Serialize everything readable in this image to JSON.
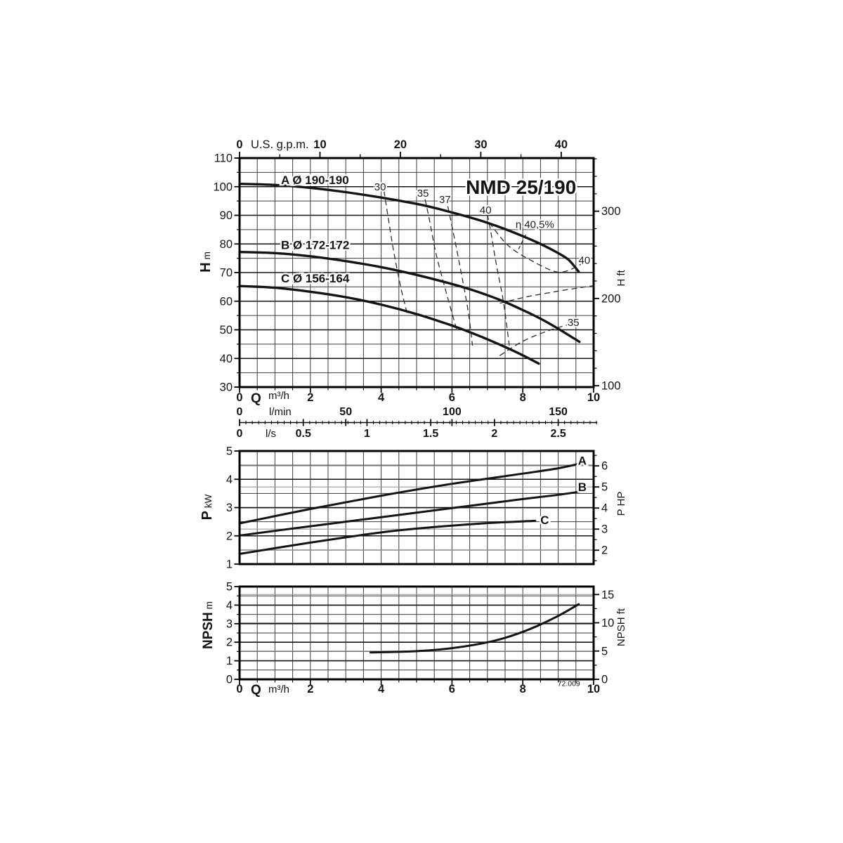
{
  "figure": {
    "model": "NMD 25/190",
    "code": "72.009"
  },
  "unit_factors": {
    "m3h_per_usgpm": 0.22712,
    "m_per_ft": 0.3048,
    "kw_per_hp": 0.7457,
    "m3h_per_lmin": 0.06,
    "m3h_per_ls": 3.6
  },
  "colors": {
    "ink": "#141414",
    "grid": "#3c3c3c",
    "grid_major": "#151515",
    "gray_aux": "#9a9a9a",
    "dashed": "#2e2e2e",
    "bg": "#ffffff"
  },
  "chart_data": [
    {
      "id": "head",
      "type": "line",
      "title": "NMD 25/190",
      "title_at": [
        7.95,
        100.0
      ],
      "xlim": [
        0,
        10
      ],
      "ylim": [
        30,
        110
      ],
      "grid": {
        "x_step": 0.5,
        "y_minor_step": 5,
        "y_major_step": 10
      },
      "top_axis": {
        "unit": "U.S. g.p.m.",
        "ticks": [
          0,
          10,
          20,
          30,
          40
        ],
        "minor_step": 5
      },
      "left_axis": {
        "main": "H",
        "unit": "m",
        "ticks": [
          30,
          40,
          50,
          60,
          70,
          80,
          90,
          100,
          110
        ],
        "minor_step": 5
      },
      "right_axis": {
        "main": "H",
        "unit": "ft",
        "ticks": [
          100,
          200,
          300
        ],
        "minor_step": 20
      },
      "bottom_axis": {
        "has_labels": false
      },
      "series": [
        {
          "name": "A",
          "label": "A Ø 190-190",
          "label_at": [
            1.17,
            102.4
          ],
          "points": [
            [
              0,
              101
            ],
            [
              1,
              100.6
            ],
            [
              2,
              99.6
            ],
            [
              3,
              98.1
            ],
            [
              4,
              96.2
            ],
            [
              5,
              94
            ],
            [
              5.5,
              92.6
            ],
            [
              6,
              91
            ],
            [
              6.5,
              89.3
            ],
            [
              7,
              87.4
            ],
            [
              7.5,
              85.2
            ],
            [
              8,
              82.7
            ],
            [
              8.5,
              80
            ],
            [
              9,
              76.8
            ],
            [
              9.3,
              74.4
            ],
            [
              9.58,
              70.3
            ]
          ]
        },
        {
          "name": "B",
          "label": "B Ø 172-172",
          "label_at": [
            1.17,
            79.7
          ],
          "points": [
            [
              0,
              77.2
            ],
            [
              1,
              76.8
            ],
            [
              2,
              75.7
            ],
            [
              3,
              74
            ],
            [
              4,
              71.9
            ],
            [
              5,
              69.2
            ],
            [
              6,
              66
            ],
            [
              6.5,
              64.2
            ],
            [
              7,
              62.1
            ],
            [
              7.5,
              59.7
            ],
            [
              8,
              56.9
            ],
            [
              8.5,
              53.9
            ],
            [
              9,
              50.4
            ],
            [
              9.6,
              45.8
            ]
          ]
        },
        {
          "name": "C",
          "label": "C Ø 156-164",
          "label_at": [
            1.17,
            68.0
          ],
          "points": [
            [
              0,
              65.3
            ],
            [
              1,
              64.7
            ],
            [
              2,
              63.3
            ],
            [
              3,
              61.4
            ],
            [
              4,
              58.8
            ],
            [
              5,
              55.5
            ],
            [
              6,
              51.5
            ],
            [
              6.5,
              49.2
            ],
            [
              7,
              46.7
            ],
            [
              7.5,
              44
            ],
            [
              8,
              41.1
            ],
            [
              8.45,
              38.2
            ]
          ]
        }
      ],
      "efficiency": {
        "labels": [
          {
            "text": "30",
            "at": [
              3.97,
              100.0
            ]
          },
          {
            "text": "35",
            "at": [
              5.18,
              97.7
            ]
          },
          {
            "text": "37",
            "at": [
              5.8,
              95.5
            ]
          },
          {
            "text": "40",
            "at": [
              6.95,
              91.8
            ]
          },
          {
            "text": "η 40,5%",
            "at": [
              8.34,
              86.8
            ]
          },
          {
            "text": "40",
            "at": [
              9.74,
              74.3
            ]
          },
          {
            "text": "35",
            "at": [
              9.43,
              52.6
            ]
          }
        ],
        "curves": [
          {
            "name": "eff-30",
            "points": [
              [
                4.08,
                98.6
              ],
              [
                4.2,
                89
              ],
              [
                4.36,
                77
              ],
              [
                4.56,
                64.5
              ],
              [
                4.75,
                55
              ]
            ]
          },
          {
            "name": "eff-35",
            "points": [
              [
                5.24,
                95.6
              ],
              [
                5.37,
                88
              ],
              [
                5.56,
                76
              ],
              [
                5.85,
                62.5
              ],
              [
                6.13,
                50.2
              ]
            ]
          },
          {
            "name": "eff-37",
            "points": [
              [
                5.88,
                93.2
              ],
              [
                6.02,
                85
              ],
              [
                6.22,
                72.5
              ],
              [
                6.45,
                57
              ],
              [
                6.58,
                44.5
              ]
            ]
          },
          {
            "name": "eff-40-left",
            "points": [
              [
                7.0,
                90.3
              ],
              [
                7.1,
                84
              ],
              [
                7.25,
                73
              ],
              [
                7.45,
                60
              ],
              [
                7.62,
                44.5
              ]
            ]
          },
          {
            "name": "eff-40-right",
            "points": [
              [
                7.05,
                87.5
              ],
              [
                7.6,
                79.3
              ],
              [
                8.3,
                73.8
              ],
              [
                8.9,
                70.4
              ],
              [
                9.25,
                70.6
              ],
              [
                9.66,
                73
              ]
            ]
          },
          {
            "name": "eff-rising-mid",
            "points": [
              [
                7.35,
                59.3
              ],
              [
                8.1,
                61.5
              ],
              [
                8.9,
                63.3
              ],
              [
                9.6,
                64.7
              ],
              [
                10,
                65.4
              ]
            ]
          },
          {
            "name": "eff-35-right",
            "points": [
              [
                7.35,
                41
              ],
              [
                8.0,
                46
              ],
              [
                8.7,
                49.6
              ],
              [
                9.33,
                52
              ]
            ]
          },
          {
            "name": "eta-leader",
            "points": [
              [
                7.88,
                78.2
              ],
              [
                8.1,
                83.6
              ]
            ]
          }
        ]
      }
    },
    {
      "id": "power",
      "type": "line",
      "xlim": [
        0,
        10
      ],
      "ylim": [
        1,
        5
      ],
      "grid": {
        "x_step": 0.5,
        "y_minor_step": 0.5,
        "y_major_step": 1
      },
      "left_axis": {
        "main": "P",
        "unit": "kW",
        "ticks": [
          1,
          2,
          3,
          4,
          5
        ]
      },
      "right_axis": {
        "main": "P",
        "unit": "HP",
        "ticks": [
          2,
          3,
          4,
          5,
          6
        ],
        "minor_step": 0.5,
        "gray_lines": true
      },
      "series": [
        {
          "name": "A",
          "label": "A",
          "label_at": [
            9.68,
            4.67
          ],
          "points": [
            [
              0,
              2.44
            ],
            [
              2,
              2.95
            ],
            [
              4,
              3.42
            ],
            [
              6,
              3.84
            ],
            [
              8,
              4.2
            ],
            [
              9,
              4.39
            ],
            [
              9.6,
              4.55
            ]
          ]
        },
        {
          "name": "B",
          "label": "B",
          "label_at": [
            9.68,
            3.73
          ],
          "points": [
            [
              0,
              2.01
            ],
            [
              2,
              2.34
            ],
            [
              4,
              2.66
            ],
            [
              6,
              2.98
            ],
            [
              8,
              3.3
            ],
            [
              9,
              3.45
            ],
            [
              9.6,
              3.56
            ]
          ]
        },
        {
          "name": "C",
          "label": "C",
          "label_at": [
            8.62,
            2.57
          ],
          "points": [
            [
              0,
              1.36
            ],
            [
              2,
              1.76
            ],
            [
              4,
              2.12
            ],
            [
              5.5,
              2.31
            ],
            [
              7,
              2.45
            ],
            [
              8.35,
              2.53
            ]
          ]
        }
      ]
    },
    {
      "id": "npsh",
      "type": "line",
      "xlim": [
        0,
        10
      ],
      "ylim": [
        0,
        5
      ],
      "grid": {
        "x_step": 0.5,
        "y_minor_step": 0.5,
        "y_major_step": 1
      },
      "left_axis": {
        "main": "NPSH",
        "unit": "m",
        "ticks": [
          0,
          1,
          2,
          3,
          4,
          5
        ],
        "minor_step": 0.5
      },
      "right_axis": {
        "main": "NPSH",
        "unit": "ft",
        "ticks": [
          0,
          5,
          10,
          15
        ],
        "minor_step": 2.5,
        "gray_lines": true
      },
      "bottom_axis": {
        "has_labels": true,
        "q_prefix": "Q",
        "q_unit": "m³/h",
        "ticks": [
          0,
          2,
          4,
          6,
          8,
          10
        ]
      },
      "note": "72.009",
      "note_at_q": 9.3,
      "series": [
        {
          "name": "NPSH",
          "label": null,
          "points": [
            [
              3.7,
              1.45
            ],
            [
              4.2,
              1.47
            ],
            [
              4.8,
              1.5
            ],
            [
              5.4,
              1.57
            ],
            [
              6,
              1.68
            ],
            [
              6.6,
              1.85
            ],
            [
              7.2,
              2.08
            ],
            [
              7.8,
              2.42
            ],
            [
              8.4,
              2.87
            ],
            [
              9,
              3.42
            ],
            [
              9.58,
              4.05
            ]
          ]
        }
      ]
    }
  ],
  "flow_scales": {
    "q_row": {
      "prefix": "Q",
      "unit": "m³/h",
      "labels": [
        {
          "t": "0",
          "q": 0
        },
        {
          "t": "2",
          "q": 2
        },
        {
          "t": "4",
          "q": 4
        },
        {
          "t": "6",
          "q": 6
        },
        {
          "t": "8",
          "q": 8
        },
        {
          "t": "10",
          "q": 10
        }
      ]
    },
    "lmin_row": {
      "unit": "l/min",
      "labels": [
        {
          "t": "0",
          "q": 0
        },
        {
          "t": "50",
          "q": 3
        },
        {
          "t": "100",
          "q": 6
        },
        {
          "t": "150",
          "q": 9
        }
      ]
    },
    "ls_row": {
      "unit": "l/s",
      "labels": [
        {
          "t": "0",
          "q": 0
        },
        {
          "t": "0.5",
          "q": 1.8
        },
        {
          "t": "1",
          "q": 3.6
        },
        {
          "t": "1.5",
          "q": 5.4
        },
        {
          "t": "2",
          "q": 7.2
        },
        {
          "t": "2.5",
          "q": 9
        }
      ],
      "major_tick_q": [
        0,
        1.8,
        3,
        3.6,
        5.4,
        6,
        7.2,
        9
      ],
      "minor_tick_step_q": 0.18,
      "line_end_q": 10.1
    }
  }
}
